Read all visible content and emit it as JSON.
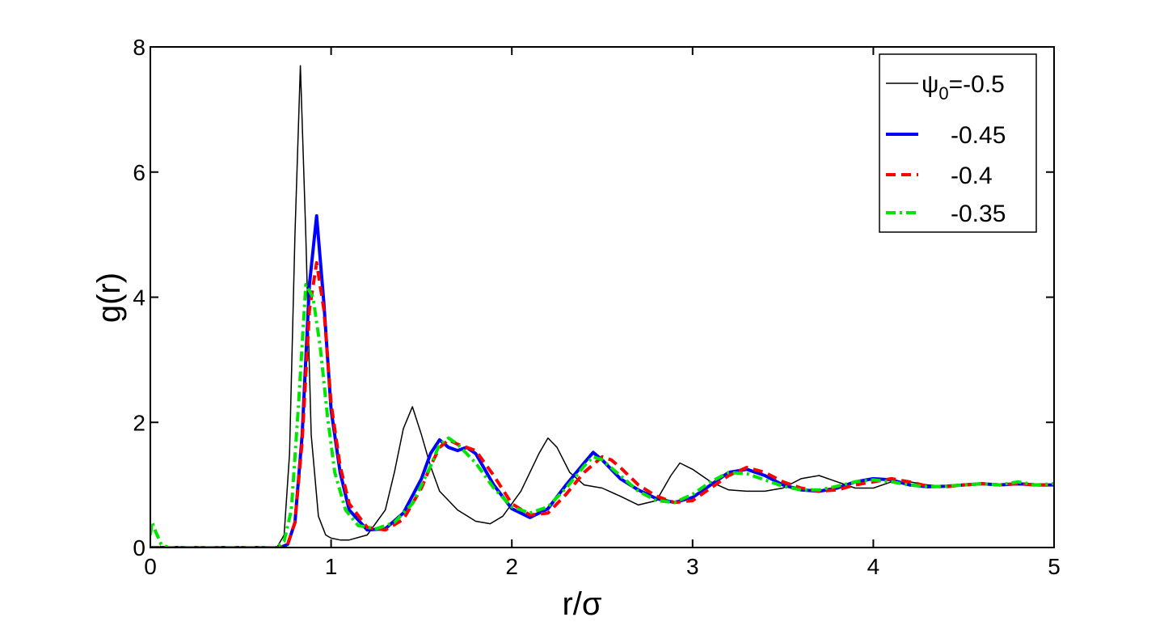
{
  "chart_data": {
    "type": "line",
    "xlabel": "r/σ",
    "ylabel": "g(r)",
    "xlim": [
      0,
      5
    ],
    "ylim": [
      0,
      8
    ],
    "xticks": [
      0,
      1,
      2,
      3,
      4,
      5
    ],
    "yticks": [
      0,
      2,
      4,
      6,
      8
    ],
    "grid": false,
    "legend": {
      "placement": "top-right",
      "entries": [
        {
          "prefix": "ψ",
          "sub": "0",
          "suffix": "=-0.5"
        },
        {
          "text": "-0.45"
        },
        {
          "text": "-0.4"
        },
        {
          "text": "-0.35"
        }
      ]
    },
    "series": [
      {
        "legend_index": 0,
        "color": "#000000",
        "style": "solid",
        "x": [
          0.0,
          0.7,
          0.74,
          0.77,
          0.8,
          0.83,
          0.86,
          0.89,
          0.93,
          0.97,
          1.0,
          1.05,
          1.1,
          1.2,
          1.3,
          1.35,
          1.4,
          1.45,
          1.5,
          1.55,
          1.6,
          1.7,
          1.8,
          1.88,
          1.95,
          2.05,
          2.15,
          2.2,
          2.25,
          2.32,
          2.4,
          2.5,
          2.6,
          2.7,
          2.8,
          2.88,
          2.93,
          3.0,
          3.1,
          3.2,
          3.3,
          3.4,
          3.5,
          3.6,
          3.7,
          3.8,
          3.9,
          4.0,
          4.1,
          4.2,
          4.3,
          4.4,
          4.5,
          4.6,
          4.7,
          4.8,
          4.9,
          5.0
        ],
        "y": [
          0.0,
          0.0,
          0.2,
          1.5,
          5.0,
          7.7,
          5.0,
          1.8,
          0.5,
          0.2,
          0.15,
          0.12,
          0.12,
          0.2,
          0.6,
          1.2,
          1.9,
          2.25,
          1.8,
          1.3,
          0.9,
          0.6,
          0.42,
          0.38,
          0.5,
          0.9,
          1.5,
          1.75,
          1.6,
          1.2,
          1.0,
          0.95,
          0.82,
          0.68,
          0.75,
          1.15,
          1.35,
          1.25,
          1.05,
          0.92,
          0.9,
          0.9,
          0.95,
          1.1,
          1.15,
          1.05,
          0.95,
          0.95,
          1.05,
          1.05,
          1.0,
          0.98,
          1.0,
          1.02,
          1.0,
          1.0,
          1.0,
          1.0
        ]
      },
      {
        "legend_index": 1,
        "color": "#0000ff",
        "style": "solid",
        "x": [
          0.0,
          0.72,
          0.76,
          0.8,
          0.84,
          0.88,
          0.92,
          0.96,
          1.0,
          1.05,
          1.1,
          1.2,
          1.3,
          1.4,
          1.5,
          1.55,
          1.6,
          1.65,
          1.7,
          1.75,
          1.8,
          1.9,
          2.0,
          2.1,
          2.2,
          2.3,
          2.4,
          2.45,
          2.5,
          2.6,
          2.7,
          2.8,
          2.9,
          3.0,
          3.1,
          3.2,
          3.3,
          3.4,
          3.5,
          3.6,
          3.7,
          3.8,
          3.9,
          4.0,
          4.1,
          4.2,
          4.3,
          4.4,
          4.5,
          4.6,
          4.7,
          4.8,
          4.9,
          5.0
        ],
        "y": [
          0.0,
          0.0,
          0.05,
          0.4,
          1.8,
          4.2,
          5.3,
          3.9,
          2.2,
          1.2,
          0.6,
          0.28,
          0.3,
          0.55,
          1.1,
          1.5,
          1.72,
          1.6,
          1.55,
          1.6,
          1.5,
          1.0,
          0.62,
          0.48,
          0.62,
          1.0,
          1.35,
          1.52,
          1.4,
          1.1,
          0.92,
          0.78,
          0.72,
          0.8,
          1.0,
          1.2,
          1.25,
          1.15,
          1.0,
          0.92,
          0.9,
          0.95,
          1.05,
          1.1,
          1.08,
          1.0,
          0.97,
          0.98,
          1.0,
          1.02,
          1.0,
          1.02,
          1.0,
          1.0
        ]
      },
      {
        "legend_index": 2,
        "color": "#ff0000",
        "style": "dashed",
        "x": [
          0.0,
          0.72,
          0.76,
          0.8,
          0.84,
          0.88,
          0.92,
          0.96,
          1.0,
          1.05,
          1.1,
          1.2,
          1.3,
          1.4,
          1.5,
          1.55,
          1.6,
          1.65,
          1.7,
          1.75,
          1.8,
          1.9,
          2.0,
          2.1,
          2.2,
          2.3,
          2.4,
          2.5,
          2.55,
          2.6,
          2.7,
          2.8,
          2.9,
          3.0,
          3.1,
          3.2,
          3.3,
          3.4,
          3.5,
          3.6,
          3.7,
          3.8,
          3.9,
          4.0,
          4.1,
          4.2,
          4.3,
          4.4,
          4.5,
          4.6,
          4.7,
          4.8,
          4.9,
          5.0
        ],
        "y": [
          0.0,
          0.0,
          0.05,
          0.4,
          1.7,
          3.8,
          4.55,
          3.8,
          2.3,
          1.3,
          0.7,
          0.32,
          0.28,
          0.45,
          0.95,
          1.3,
          1.6,
          1.72,
          1.65,
          1.6,
          1.55,
          1.15,
          0.7,
          0.52,
          0.55,
          0.85,
          1.2,
          1.45,
          1.4,
          1.28,
          1.0,
          0.82,
          0.72,
          0.75,
          0.95,
          1.15,
          1.28,
          1.2,
          1.05,
          0.95,
          0.9,
          0.92,
          1.0,
          1.05,
          1.1,
          1.05,
          0.98,
          0.97,
          1.0,
          1.02,
          1.0,
          1.02,
          1.0,
          1.0
        ]
      },
      {
        "legend_index": 3,
        "color": "#00e600",
        "style": "dashdot",
        "x": [
          0.0,
          0.01,
          0.03,
          0.06,
          0.1,
          0.7,
          0.74,
          0.78,
          0.82,
          0.86,
          0.9,
          0.94,
          0.98,
          1.02,
          1.08,
          1.15,
          1.25,
          1.35,
          1.45,
          1.55,
          1.6,
          1.65,
          1.7,
          1.8,
          1.9,
          2.0,
          2.1,
          2.2,
          2.3,
          2.4,
          2.45,
          2.5,
          2.6,
          2.7,
          2.8,
          2.9,
          3.0,
          3.1,
          3.2,
          3.3,
          3.4,
          3.5,
          3.6,
          3.7,
          3.8,
          3.9,
          4.0,
          4.1,
          4.2,
          4.3,
          4.4,
          4.5,
          4.6,
          4.7,
          4.8,
          4.9,
          5.0
        ],
        "y": [
          0.2,
          0.4,
          0.25,
          0.05,
          0.0,
          0.0,
          0.1,
          0.6,
          2.3,
          4.2,
          4.0,
          3.2,
          2.1,
          1.2,
          0.6,
          0.35,
          0.3,
          0.4,
          0.7,
          1.3,
          1.65,
          1.75,
          1.65,
          1.35,
          0.95,
          0.65,
          0.55,
          0.65,
          0.95,
          1.3,
          1.45,
          1.4,
          1.15,
          0.9,
          0.75,
          0.72,
          0.85,
          1.05,
          1.2,
          1.18,
          1.08,
          0.98,
          0.92,
          0.92,
          0.98,
          1.05,
          1.08,
          1.05,
          1.0,
          0.97,
          0.98,
          1.0,
          1.02,
          1.0,
          1.05,
          1.0,
          1.02
        ]
      }
    ]
  }
}
